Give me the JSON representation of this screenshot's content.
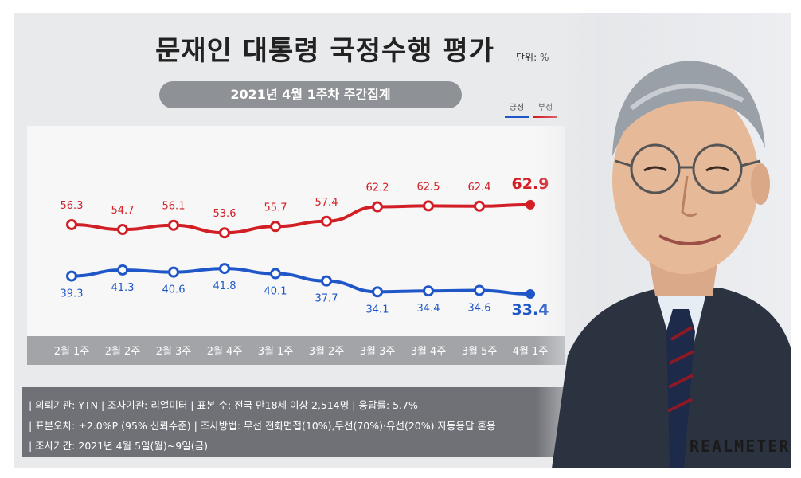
{
  "title": "문재인 대통령 국정수행 평가",
  "unit": "단위: %",
  "subtitle": "2021년 4월 1주차 주간집계",
  "legend": {
    "positive": "긍정",
    "negative": "부정"
  },
  "colors": {
    "positive": "#1f57c8",
    "negative": "#d21f26",
    "band": "#a2a4a8",
    "info_bg": "#6f7177"
  },
  "chart_data": {
    "type": "line",
    "categories": [
      "2월 1주",
      "2월 2주",
      "2월 3주",
      "2월 4주",
      "3월 1주",
      "3월 2주",
      "3월 3주",
      "3월 4주",
      "3월 5주",
      "4월 1주"
    ],
    "series": [
      {
        "name": "부정",
        "values": [
          56.3,
          54.7,
          56.1,
          53.6,
          55.7,
          57.4,
          62.2,
          62.5,
          62.4,
          62.9
        ]
      },
      {
        "name": "긍정",
        "values": [
          39.3,
          41.3,
          40.6,
          41.8,
          40.1,
          37.7,
          34.1,
          34.4,
          34.6,
          33.4
        ]
      }
    ],
    "title": "문재인 대통령 국정수행 평가",
    "subtitle": "2021년 4월 1주차 주간집계",
    "xlabel": "",
    "ylabel": "",
    "grid": false,
    "legend_position": "top-right"
  },
  "info": {
    "line1": "| 의뢰기관: YTN   |  조사기관: 리얼미터  |  표본 수: 전국 만18세 이상 2,514명  |  응답률: 5.7%",
    "line2": "| 표본오차: ±2.0%P (95% 신뢰수준)  |  조사방법: 무선 전화면접(10%),무선(70%)·유선(20%) 자동응답 혼용",
    "line3": "| 조사기간: 2021년 4월 5일(월)~9일(금)"
  },
  "brand": "REALMETER"
}
